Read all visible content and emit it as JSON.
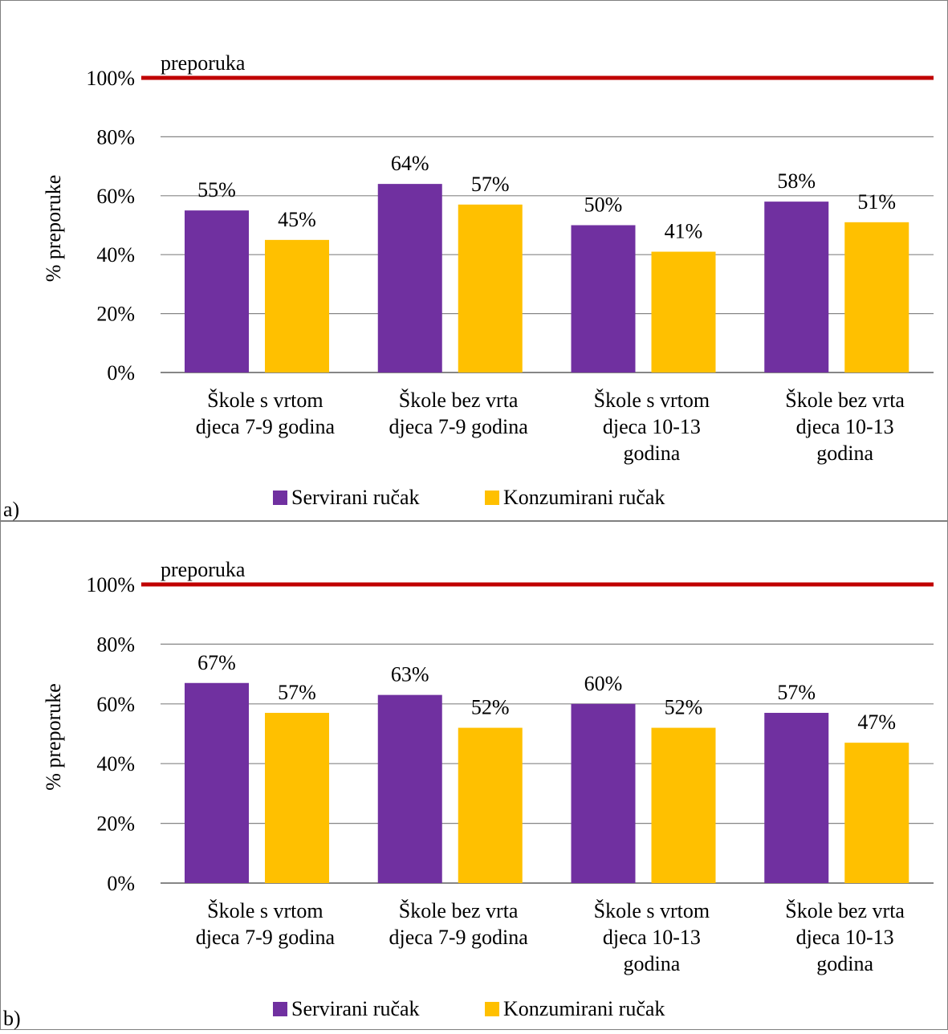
{
  "chart_data": [
    {
      "type": "bar",
      "panel_label": "a)",
      "ylabel": "% preporuke",
      "ylim": [
        0,
        100
      ],
      "yticks": [
        "0%",
        "20%",
        "40%",
        "60%",
        "80%",
        "100%"
      ],
      "grid": true,
      "reference_line": {
        "label": "preporuka",
        "value": 100,
        "color": "#C00000"
      },
      "categories": [
        [
          "Škole s vrtom",
          "djeca 7-9 godina"
        ],
        [
          "Škole bez vrta",
          "djeca 7-9 godina"
        ],
        [
          "Škole s vrtom",
          "djeca 10-13",
          "godina"
        ],
        [
          "Škole bez vrta",
          "djeca 10-13",
          "godina"
        ]
      ],
      "series": [
        {
          "name": "Servirani ručak",
          "color": "#7030A0",
          "values": [
            55,
            64,
            50,
            58
          ],
          "labels": [
            "55%",
            "64%",
            "50%",
            "58%"
          ]
        },
        {
          "name": "Konzumirani ručak",
          "color": "#FFC000",
          "values": [
            45,
            57,
            41,
            51
          ],
          "labels": [
            "45%",
            "57%",
            "41%",
            "51%"
          ]
        }
      ],
      "legend_position": "bottom"
    },
    {
      "type": "bar",
      "panel_label": "b)",
      "ylabel": "% preporuke",
      "ylim": [
        0,
        100
      ],
      "yticks": [
        "0%",
        "20%",
        "40%",
        "60%",
        "80%",
        "100%"
      ],
      "grid": true,
      "reference_line": {
        "label": "preporuka",
        "value": 100,
        "color": "#C00000"
      },
      "categories": [
        [
          "Škole s vrtom",
          "djeca 7-9 godina"
        ],
        [
          "Škole bez vrta",
          "djeca 7-9 godina"
        ],
        [
          "Škole s vrtom",
          "djeca 10-13",
          "godina"
        ],
        [
          "Škole bez vrta",
          "djeca 10-13",
          "godina"
        ]
      ],
      "series": [
        {
          "name": "Servirani ručak",
          "color": "#7030A0",
          "values": [
            67,
            63,
            60,
            57
          ],
          "labels": [
            "67%",
            "63%",
            "60%",
            "57%"
          ]
        },
        {
          "name": "Konzumirani ručak",
          "color": "#FFC000",
          "values": [
            57,
            52,
            52,
            47
          ],
          "labels": [
            "57%",
            "52%",
            "52%",
            "47%"
          ]
        }
      ],
      "legend_position": "bottom"
    }
  ]
}
